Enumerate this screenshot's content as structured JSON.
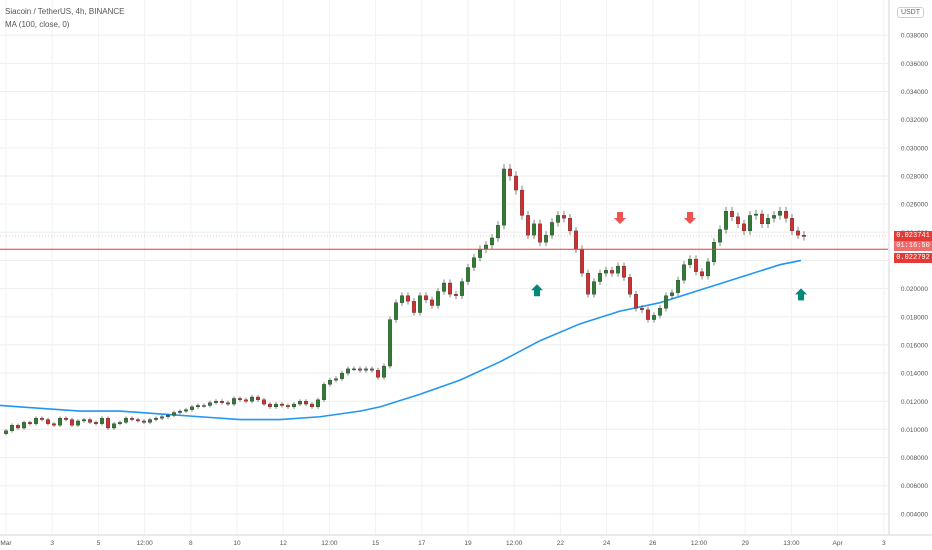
{
  "legend": {
    "symbol_line": "Siacoin / TetherUS, 4h, BINANCE",
    "indicator_line": "MA (100, close, 0)"
  },
  "currency_badge": "USDT",
  "price_tags": {
    "last_price": "0.023741",
    "countdown": "01:16:50",
    "level": "0.022792"
  },
  "colors": {
    "bull": "#26a69a",
    "bull_body": "#2e7d32",
    "bear": "#d32f2f",
    "ma": "#2196f3",
    "level_line": "#e53935",
    "arrow_up": "#00897b",
    "arrow_down": "#ef5350"
  },
  "chart_data": {
    "type": "candlestick",
    "x_ticks": [
      "Mar",
      "3",
      "5",
      "12:00",
      "8",
      "10",
      "12",
      "12:00",
      "15",
      "17",
      "19",
      "12:00",
      "22",
      "24",
      "26",
      "12:00",
      "29",
      "13:00",
      "Apr",
      "3"
    ],
    "y_ticks": [
      "0.004000",
      "0.006000",
      "0.008000",
      "0.010000",
      "0.012000",
      "0.014000",
      "0.016000",
      "0.018000",
      "0.020000",
      "0.022000",
      "0.024000",
      "0.026000",
      "0.028000",
      "0.030000",
      "0.032000",
      "0.034000",
      "0.036000",
      "0.038000"
    ],
    "ylim": [
      0.0025,
      0.0405
    ],
    "grid": true,
    "horizontal_level": 0.022792,
    "price_series": [
      [
        0,
        0.0097
      ],
      [
        6,
        0.0099
      ],
      [
        12,
        0.0103
      ],
      [
        18,
        0.0101
      ],
      [
        24,
        0.0105
      ],
      [
        30,
        0.0104
      ],
      [
        36,
        0.0108
      ],
      [
        42,
        0.0107
      ],
      [
        48,
        0.0104
      ],
      [
        54,
        0.0103
      ],
      [
        60,
        0.0108
      ],
      [
        66,
        0.0107
      ],
      [
        72,
        0.0103
      ],
      [
        78,
        0.0106
      ],
      [
        84,
        0.0107
      ],
      [
        90,
        0.0105
      ],
      [
        96,
        0.0104
      ],
      [
        102,
        0.0108
      ],
      [
        108,
        0.0101
      ],
      [
        114,
        0.0104
      ],
      [
        120,
        0.0105
      ],
      [
        126,
        0.0108
      ],
      [
        132,
        0.0107
      ],
      [
        138,
        0.0106
      ],
      [
        144,
        0.0105
      ],
      [
        150,
        0.0107
      ],
      [
        156,
        0.0108
      ],
      [
        162,
        0.0109
      ],
      [
        168,
        0.011
      ],
      [
        174,
        0.0112
      ],
      [
        180,
        0.0113
      ],
      [
        186,
        0.0114
      ],
      [
        192,
        0.0116
      ],
      [
        198,
        0.0117
      ],
      [
        204,
        0.0117
      ],
      [
        210,
        0.0119
      ],
      [
        216,
        0.012
      ],
      [
        222,
        0.0119
      ],
      [
        228,
        0.0118
      ],
      [
        234,
        0.0122
      ],
      [
        240,
        0.0121
      ],
      [
        246,
        0.012
      ],
      [
        252,
        0.0123
      ],
      [
        258,
        0.0121
      ],
      [
        264,
        0.0118
      ],
      [
        270,
        0.0116
      ],
      [
        276,
        0.0118
      ],
      [
        282,
        0.0117
      ],
      [
        288,
        0.0116
      ],
      [
        294,
        0.0118
      ],
      [
        300,
        0.012
      ],
      [
        306,
        0.0118
      ],
      [
        312,
        0.0116
      ],
      [
        318,
        0.0121
      ],
      [
        324,
        0.0132
      ],
      [
        330,
        0.0135
      ],
      [
        336,
        0.0136
      ],
      [
        342,
        0.014
      ],
      [
        348,
        0.0143
      ],
      [
        354,
        0.0143
      ],
      [
        360,
        0.0142
      ],
      [
        366,
        0.0143
      ],
      [
        372,
        0.0142
      ],
      [
        378,
        0.0137
      ],
      [
        384,
        0.0145
      ],
      [
        390,
        0.0178
      ],
      [
        396,
        0.019
      ],
      [
        402,
        0.0195
      ],
      [
        408,
        0.0191
      ],
      [
        414,
        0.0183
      ],
      [
        420,
        0.0195
      ],
      [
        426,
        0.0192
      ],
      [
        432,
        0.0188
      ],
      [
        438,
        0.0198
      ],
      [
        444,
        0.0204
      ],
      [
        450,
        0.0196
      ],
      [
        456,
        0.0195
      ],
      [
        462,
        0.0205
      ],
      [
        468,
        0.0215
      ],
      [
        474,
        0.0222
      ],
      [
        480,
        0.0228
      ],
      [
        486,
        0.0231
      ],
      [
        492,
        0.0236
      ],
      [
        498,
        0.0245
      ],
      [
        504,
        0.0285
      ],
      [
        510,
        0.028
      ],
      [
        516,
        0.027
      ],
      [
        522,
        0.0252
      ],
      [
        528,
        0.0238
      ],
      [
        534,
        0.0246
      ],
      [
        540,
        0.0233
      ],
      [
        546,
        0.0238
      ],
      [
        552,
        0.0247
      ],
      [
        558,
        0.0252
      ],
      [
        564,
        0.025
      ],
      [
        570,
        0.0241
      ],
      [
        576,
        0.0228
      ],
      [
        582,
        0.0211
      ],
      [
        588,
        0.0196
      ],
      [
        594,
        0.0205
      ],
      [
        600,
        0.0211
      ],
      [
        606,
        0.0213
      ],
      [
        612,
        0.0211
      ],
      [
        618,
        0.0216
      ],
      [
        624,
        0.0208
      ],
      [
        630,
        0.0196
      ],
      [
        636,
        0.0186
      ],
      [
        642,
        0.0185
      ],
      [
        648,
        0.0178
      ],
      [
        654,
        0.0181
      ],
      [
        660,
        0.0186
      ],
      [
        666,
        0.0195
      ],
      [
        672,
        0.0197
      ],
      [
        678,
        0.0206
      ],
      [
        684,
        0.0217
      ],
      [
        690,
        0.0221
      ],
      [
        696,
        0.0212
      ],
      [
        702,
        0.0209
      ],
      [
        708,
        0.0219
      ],
      [
        714,
        0.0233
      ],
      [
        720,
        0.0242
      ],
      [
        726,
        0.0255
      ],
      [
        732,
        0.0251
      ],
      [
        738,
        0.0246
      ],
      [
        744,
        0.0241
      ],
      [
        750,
        0.0252
      ],
      [
        756,
        0.0253
      ],
      [
        762,
        0.0246
      ],
      [
        768,
        0.025
      ],
      [
        774,
        0.0252
      ],
      [
        780,
        0.0255
      ],
      [
        786,
        0.025
      ],
      [
        792,
        0.0241
      ],
      [
        798,
        0.0238
      ],
      [
        804,
        0.0237
      ]
    ],
    "ma_series": [
      [
        0,
        0.0117
      ],
      [
        40,
        0.0115
      ],
      [
        80,
        0.0113
      ],
      [
        120,
        0.0113
      ],
      [
        160,
        0.0111
      ],
      [
        200,
        0.0109
      ],
      [
        240,
        0.0107
      ],
      [
        280,
        0.0107
      ],
      [
        320,
        0.0109
      ],
      [
        360,
        0.0113
      ],
      [
        380,
        0.0116
      ],
      [
        420,
        0.0125
      ],
      [
        460,
        0.0135
      ],
      [
        500,
        0.0148
      ],
      [
        540,
        0.0163
      ],
      [
        580,
        0.0175
      ],
      [
        620,
        0.0184
      ],
      [
        660,
        0.019
      ],
      [
        700,
        0.0199
      ],
      [
        740,
        0.0208
      ],
      [
        780,
        0.0217
      ],
      [
        801,
        0.022
      ]
    ],
    "down_arrows": [
      [
        620,
        0.0248
      ],
      [
        690,
        0.0248
      ]
    ],
    "up_arrows": [
      [
        537,
        0.0201
      ],
      [
        801,
        0.0198
      ]
    ]
  }
}
